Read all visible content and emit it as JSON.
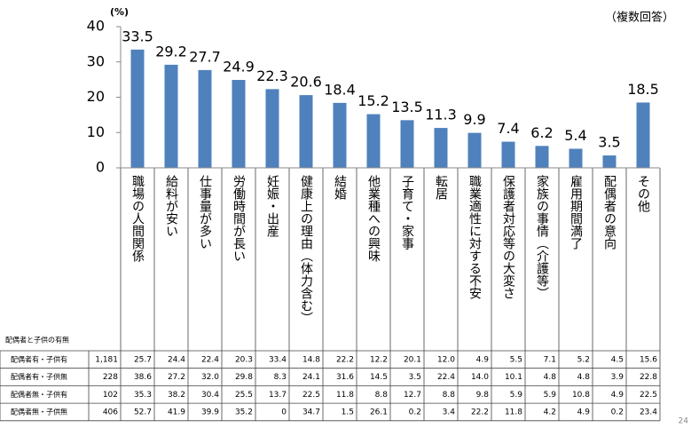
{
  "chart_data": {
    "type": "bar",
    "y_unit": "(%)",
    "note": "（複数回答）",
    "categories": [
      "職場の人間関係",
      "給料が安い",
      "仕事量が多い",
      "労働時間が長い",
      "妊娠・出産",
      "健康上の理由（体力含む）",
      "結婚",
      "他業種への興味",
      "子育て・家事",
      "転居",
      "職業適性に対する不安",
      "保護者対応等の大変さ",
      "家族の事情（介護等）",
      "雇用期間満了",
      "配偶者の意向",
      "その他"
    ],
    "values": [
      33.5,
      29.2,
      27.7,
      24.9,
      22.3,
      20.6,
      18.4,
      15.2,
      13.5,
      11.3,
      9.9,
      7.4,
      6.2,
      5.4,
      3.5,
      18.5
    ],
    "color": "#4f81bd",
    "ylim": [
      0,
      40
    ],
    "yticks": [
      0,
      10,
      20,
      30,
      40
    ]
  },
  "table": {
    "title": "配偶者と子供の有無",
    "rows": [
      [
        "配偶者有・子供有",
        "1,181",
        "25.7",
        "24.4",
        "22.4",
        "20.3",
        "33.4",
        "14.8",
        "22.2",
        "12.2",
        "20.1",
        "12.0",
        "4.9",
        "5.5",
        "7.1",
        "5.2",
        "4.5",
        "15.6"
      ],
      [
        "配偶者有・子供無",
        "228",
        "38.6",
        "27.2",
        "32.0",
        "29.8",
        "8.3",
        "24.1",
        "31.6",
        "14.5",
        "3.5",
        "22.4",
        "14.0",
        "10.1",
        "4.8",
        "4.8",
        "3.9",
        "22.8"
      ],
      [
        "配偶者無・子供有",
        "102",
        "35.3",
        "38.2",
        "30.4",
        "25.5",
        "13.7",
        "22.5",
        "11.8",
        "8.8",
        "12.7",
        "8.8",
        "9.8",
        "5.9",
        "5.9",
        "10.8",
        "4.9",
        "22.5"
      ],
      [
        "配偶者無・子供無",
        "406",
        "52.7",
        "41.9",
        "39.9",
        "35.2",
        "0",
        "34.7",
        "1.5",
        "26.1",
        "0.2",
        "3.4",
        "22.2",
        "11.8",
        "4.2",
        "4.9",
        "0.2",
        "23.4"
      ]
    ]
  },
  "page_number": "24"
}
